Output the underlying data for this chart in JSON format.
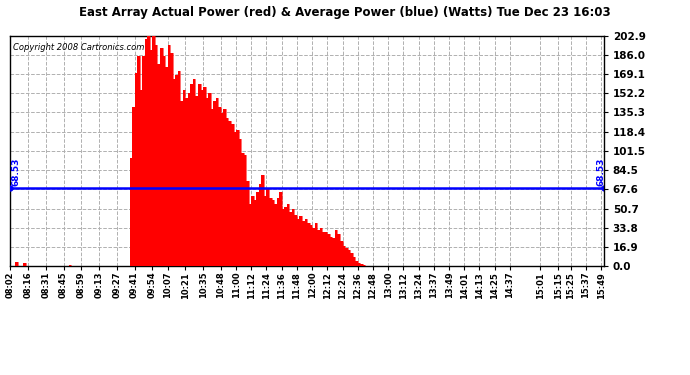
{
  "title": "East Array Actual Power (red) & Average Power (blue) (Watts) Tue Dec 23 16:03",
  "copyright": "Copyright 2008 Cartronics.com",
  "avg_power": 68.53,
  "y_ticks": [
    0.0,
    16.9,
    33.8,
    50.7,
    67.6,
    84.5,
    101.5,
    118.4,
    135.3,
    152.2,
    169.1,
    186.0,
    202.9
  ],
  "y_max": 202.9,
  "y_min": 0.0,
  "bg_color": "#ffffff",
  "bar_color": "#ff0000",
  "avg_line_color": "#0000ff",
  "grid_color": "#b0b0b0",
  "x_labels": [
    "08:02",
    "08:16",
    "08:31",
    "08:45",
    "08:59",
    "09:13",
    "09:27",
    "09:41",
    "09:54",
    "10:07",
    "10:21",
    "10:35",
    "10:48",
    "11:00",
    "11:12",
    "11:24",
    "11:36",
    "11:48",
    "12:00",
    "12:12",
    "12:24",
    "12:36",
    "12:48",
    "13:00",
    "13:12",
    "13:24",
    "13:37",
    "13:49",
    "14:01",
    "14:13",
    "14:25",
    "14:37",
    "15:01",
    "15:15",
    "15:25",
    "15:37",
    "15:49"
  ],
  "power_data": [
    0.0,
    0.0,
    3.5,
    0.0,
    0.0,
    2.8,
    0.0,
    0.0,
    0.0,
    0.0,
    0.0,
    0.0,
    0.0,
    0.0,
    0.0,
    0.0,
    0.0,
    0.0,
    0.0,
    0.0,
    0.0,
    0.0,
    0.0,
    1.0,
    0.5,
    0.3,
    0.0,
    0.0,
    0.0,
    0.0,
    0.0,
    0.0,
    0.0,
    0.0,
    0.0,
    0.0,
    0.0,
    0.0,
    0.0,
    0.0,
    0.0,
    0.0,
    0.0,
    0.0,
    0.0,
    0.0,
    0.0,
    95.0,
    140.0,
    170.0,
    185.0,
    155.0,
    185.0,
    200.0,
    202.9,
    190.0,
    202.9,
    195.0,
    178.0,
    192.0,
    185.0,
    175.0,
    195.0,
    188.0,
    165.0,
    168.0,
    172.0,
    145.0,
    155.0,
    148.0,
    152.0,
    160.0,
    165.0,
    150.0,
    160.0,
    155.0,
    158.0,
    148.0,
    152.0,
    138.0,
    145.0,
    148.0,
    140.0,
    135.0,
    138.0,
    130.0,
    128.0,
    125.0,
    118.0,
    120.0,
    112.0,
    100.0,
    98.0,
    75.0,
    55.0,
    62.0,
    58.0,
    65.0,
    72.0,
    80.0,
    62.0,
    68.0,
    60.0,
    58.0,
    55.0,
    60.0,
    65.0,
    50.0,
    52.0,
    55.0,
    48.0,
    50.0,
    45.0,
    42.0,
    44.0,
    40.0,
    42.0,
    38.0,
    36.0,
    34.0,
    38.0,
    32.0,
    34.0,
    30.0,
    30.0,
    28.0,
    26.0,
    25.0,
    32.0,
    28.0,
    22.0,
    18.0,
    16.0,
    14.0,
    12.0,
    8.0,
    5.0,
    3.0,
    2.0,
    1.0
  ]
}
